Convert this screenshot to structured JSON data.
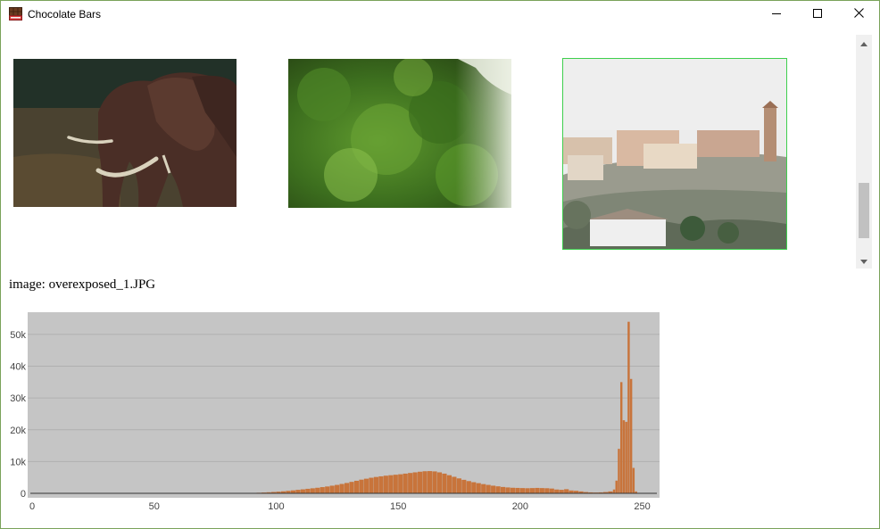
{
  "window": {
    "title": "Chocolate Bars",
    "app_icon": "chocolate-bar-icon",
    "controls": [
      "minimize-icon",
      "maximize-icon",
      "close-icon"
    ]
  },
  "gallery": {
    "thumbnails": [
      {
        "name": "elephant-thumbnail",
        "selected": false
      },
      {
        "name": "green-foliage-thumbnail",
        "selected": false
      },
      {
        "name": "hillside-village-thumbnail",
        "selected": true
      }
    ],
    "selection_color": "#3fcf4e"
  },
  "caption": "image: overexposed_1.JPG",
  "chart_data": {
    "type": "bar",
    "title": "",
    "xlabel": "",
    "ylabel": "",
    "xlim": [
      0,
      256
    ],
    "ylim": [
      0,
      57000
    ],
    "x_ticks": [
      0,
      50,
      100,
      150,
      200,
      250
    ],
    "y_ticks": [
      0,
      10000,
      20000,
      30000,
      40000,
      50000
    ],
    "y_tick_labels": [
      "0",
      "10k",
      "20k",
      "30k",
      "40k",
      "50k"
    ],
    "x_tick_labels": [
      "0",
      "50",
      "100",
      "150",
      "200",
      "250"
    ],
    "background": "#c5c5c5",
    "grid": true,
    "bar_color": "#c8743b",
    "x": [
      86,
      88,
      90,
      92,
      94,
      96,
      98,
      100,
      102,
      104,
      106,
      108,
      110,
      112,
      114,
      116,
      118,
      120,
      122,
      124,
      126,
      128,
      130,
      132,
      134,
      136,
      138,
      140,
      142,
      144,
      146,
      148,
      150,
      152,
      154,
      156,
      158,
      160,
      162,
      164,
      166,
      168,
      170,
      172,
      174,
      176,
      178,
      180,
      182,
      184,
      186,
      188,
      190,
      192,
      194,
      196,
      198,
      200,
      202,
      204,
      206,
      208,
      210,
      212,
      214,
      216,
      218,
      220,
      222,
      224,
      226,
      228,
      230,
      232,
      234,
      236,
      238,
      239,
      240,
      241,
      242,
      243,
      244,
      245,
      246,
      247
    ],
    "values": [
      50,
      80,
      120,
      180,
      250,
      330,
      420,
      520,
      640,
      780,
      930,
      1100,
      1250,
      1420,
      1580,
      1750,
      1950,
      2150,
      2400,
      2650,
      2950,
      3250,
      3600,
      3950,
      4300,
      4600,
      4900,
      5150,
      5350,
      5550,
      5700,
      5850,
      6000,
      6200,
      6400,
      6600,
      6800,
      6950,
      7000,
      6900,
      6600,
      6200,
      5700,
      5200,
      4700,
      4250,
      3850,
      3500,
      3200,
      2900,
      2650,
      2400,
      2200,
      2000,
      1850,
      1750,
      1700,
      1650,
      1600,
      1650,
      1700,
      1650,
      1600,
      1500,
      1200,
      1100,
      1300,
      900,
      800,
      600,
      400,
      300,
      250,
      300,
      400,
      600,
      1200,
      4000,
      14000,
      35000,
      23000,
      22500,
      54000,
      36000,
      8000,
      600
    ]
  }
}
